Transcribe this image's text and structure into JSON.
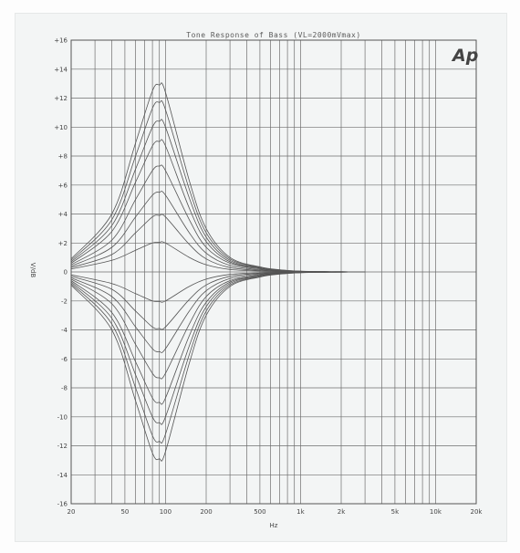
{
  "chart_data": {
    "type": "line",
    "title": "Tone Response of Bass (VL=2000mVmax)",
    "logo": "Ap",
    "xlabel": "Hz",
    "ylabel": "V/dB",
    "x_scale": "log",
    "xlim": [
      20,
      20000
    ],
    "ylim": [
      -16,
      16
    ],
    "x_ticks": [
      {
        "value": 20,
        "label": "20"
      },
      {
        "value": 50,
        "label": "50"
      },
      {
        "value": 100,
        "label": "100"
      },
      {
        "value": 200,
        "label": "200"
      },
      {
        "value": 500,
        "label": "500"
      },
      {
        "value": 1000,
        "label": "1k"
      },
      {
        "value": 2000,
        "label": "2k"
      },
      {
        "value": 5000,
        "label": "5k"
      },
      {
        "value": 10000,
        "label": "10k"
      },
      {
        "value": 20000,
        "label": "20k"
      }
    ],
    "y_ticks": [
      {
        "value": 16,
        "label": "+16"
      },
      {
        "value": 14,
        "label": "+14"
      },
      {
        "value": 12,
        "label": "+12"
      },
      {
        "value": 10,
        "label": "+10"
      },
      {
        "value": 8,
        "label": "+8"
      },
      {
        "value": 6,
        "label": "+6"
      },
      {
        "value": 4,
        "label": "+4"
      },
      {
        "value": 2,
        "label": "+2"
      },
      {
        "value": 0,
        "label": "0"
      },
      {
        "value": -2,
        "label": "-2"
      },
      {
        "value": -4,
        "label": "-4"
      },
      {
        "value": -6,
        "label": "-6"
      },
      {
        "value": -8,
        "label": "-8"
      },
      {
        "value": -10,
        "label": "-10"
      },
      {
        "value": -12,
        "label": "-12"
      },
      {
        "value": -14,
        "label": "-14"
      },
      {
        "value": -16,
        "label": "-16"
      }
    ],
    "grid": true,
    "line_color": "#555555",
    "grid_color": "#6e6e6e",
    "series": [
      {
        "x": [
          20,
          40,
          60,
          80,
          90,
          100,
          150,
          200,
          300,
          500,
          700,
          1000,
          1500,
          2000,
          3000
        ],
        "y": [
          0.9,
          4.0,
          8.9,
          12.5,
          12.9,
          12.4,
          6.3,
          3.0,
          1.0,
          0.35,
          0.15,
          0.05,
          0.02,
          0.01,
          0
        ]
      },
      {
        "x": [
          20,
          40,
          60,
          80,
          90,
          100,
          150,
          200,
          300,
          500,
          700,
          1000,
          1500,
          2000,
          3000
        ],
        "y": [
          0.8,
          3.6,
          8.0,
          11.3,
          11.7,
          11.2,
          5.7,
          2.7,
          0.9,
          0.32,
          0.14,
          0.05,
          0.02,
          0.01,
          0
        ]
      },
      {
        "x": [
          20,
          40,
          60,
          80,
          90,
          100,
          150,
          200,
          300,
          500,
          700,
          1000,
          1500,
          2000,
          3000
        ],
        "y": [
          0.7,
          3.2,
          7.1,
          10.0,
          10.4,
          10.0,
          5.1,
          2.4,
          0.8,
          0.28,
          0.12,
          0.04,
          0.02,
          0.01,
          0
        ]
      },
      {
        "x": [
          20,
          40,
          60,
          80,
          90,
          100,
          150,
          200,
          300,
          500,
          700,
          1000,
          1500,
          2000,
          3000
        ],
        "y": [
          0.6,
          2.8,
          6.2,
          8.7,
          9.0,
          8.7,
          4.4,
          2.1,
          0.7,
          0.25,
          0.1,
          0.04,
          0.01,
          0.01,
          0
        ]
      },
      {
        "x": [
          20,
          40,
          60,
          80,
          90,
          100,
          150,
          200,
          300,
          500,
          700,
          1000,
          1500,
          2000,
          3000
        ],
        "y": [
          0.5,
          2.2,
          5.0,
          7.0,
          7.3,
          7.0,
          3.6,
          1.7,
          0.6,
          0.2,
          0.08,
          0.03,
          0.01,
          0,
          0
        ]
      },
      {
        "x": [
          20,
          40,
          60,
          80,
          90,
          100,
          150,
          200,
          300,
          500,
          700,
          1000,
          1500,
          2000,
          3000
        ],
        "y": [
          0.4,
          1.7,
          3.8,
          5.3,
          5.5,
          5.3,
          2.7,
          1.3,
          0.45,
          0.15,
          0.06,
          0.02,
          0.01,
          0,
          0
        ]
      },
      {
        "x": [
          20,
          40,
          60,
          80,
          90,
          100,
          150,
          200,
          300,
          500,
          700,
          1000,
          1500,
          2000,
          3000
        ],
        "y": [
          0.3,
          1.2,
          2.7,
          3.8,
          3.9,
          3.8,
          1.9,
          0.9,
          0.3,
          0.1,
          0.04,
          0.01,
          0,
          0,
          0
        ]
      },
      {
        "x": [
          20,
          40,
          60,
          80,
          90,
          100,
          150,
          200,
          300,
          500,
          700,
          1000,
          1500,
          2000,
          3000
        ],
        "y": [
          0.2,
          0.8,
          1.5,
          2.0,
          2.05,
          2.0,
          1.0,
          0.5,
          0.17,
          0.06,
          0.02,
          0.01,
          0,
          0,
          0
        ]
      },
      {
        "x": [
          20,
          40,
          60,
          80,
          90,
          100,
          150,
          200,
          300,
          500,
          700,
          1000,
          1500,
          2000,
          3000
        ],
        "y": [
          -0.2,
          -0.8,
          -1.5,
          -2.0,
          -2.05,
          -2.0,
          -1.0,
          -0.5,
          -0.17,
          -0.06,
          -0.02,
          -0.01,
          0,
          0,
          0
        ]
      },
      {
        "x": [
          20,
          40,
          60,
          80,
          90,
          100,
          150,
          200,
          300,
          500,
          700,
          1000,
          1500,
          2000,
          3000
        ],
        "y": [
          -0.3,
          -1.2,
          -2.7,
          -3.8,
          -3.9,
          -3.8,
          -1.9,
          -0.9,
          -0.3,
          -0.1,
          -0.04,
          -0.01,
          0,
          0,
          0
        ]
      },
      {
        "x": [
          20,
          40,
          60,
          80,
          90,
          100,
          150,
          200,
          300,
          500,
          700,
          1000,
          1500,
          2000,
          3000
        ],
        "y": [
          -0.4,
          -1.7,
          -3.8,
          -5.3,
          -5.5,
          -5.3,
          -2.7,
          -1.3,
          -0.45,
          -0.15,
          -0.06,
          -0.02,
          -0.01,
          0,
          0
        ]
      },
      {
        "x": [
          20,
          40,
          60,
          80,
          90,
          100,
          150,
          200,
          300,
          500,
          700,
          1000,
          1500,
          2000,
          3000
        ],
        "y": [
          -0.5,
          -2.2,
          -5.0,
          -7.0,
          -7.3,
          -7.0,
          -3.6,
          -1.7,
          -0.6,
          -0.2,
          -0.08,
          -0.03,
          -0.01,
          0,
          0
        ]
      },
      {
        "x": [
          20,
          40,
          60,
          80,
          90,
          100,
          150,
          200,
          300,
          500,
          700,
          1000,
          1500,
          2000,
          3000
        ],
        "y": [
          -0.6,
          -2.8,
          -6.2,
          -8.7,
          -9.0,
          -8.7,
          -4.4,
          -2.1,
          -0.7,
          -0.25,
          -0.1,
          -0.04,
          -0.01,
          -0.01,
          0
        ]
      },
      {
        "x": [
          20,
          40,
          60,
          80,
          90,
          100,
          150,
          200,
          300,
          500,
          700,
          1000,
          1500,
          2000,
          3000
        ],
        "y": [
          -0.7,
          -3.2,
          -7.1,
          -10.0,
          -10.4,
          -10.0,
          -5.1,
          -2.4,
          -0.8,
          -0.28,
          -0.12,
          -0.04,
          -0.02,
          -0.01,
          0
        ]
      },
      {
        "x": [
          20,
          40,
          60,
          80,
          90,
          100,
          150,
          200,
          300,
          500,
          700,
          1000,
          1500,
          2000,
          3000
        ],
        "y": [
          -0.8,
          -3.6,
          -8.0,
          -11.3,
          -11.7,
          -11.2,
          -5.7,
          -2.7,
          -0.9,
          -0.32,
          -0.14,
          -0.05,
          -0.02,
          -0.01,
          0
        ]
      },
      {
        "x": [
          20,
          40,
          60,
          80,
          90,
          100,
          150,
          200,
          300,
          500,
          700,
          1000,
          1500,
          2000,
          3000
        ],
        "y": [
          -0.9,
          -4.0,
          -8.9,
          -12.5,
          -12.9,
          -12.4,
          -6.3,
          -3.0,
          -1.0,
          -0.35,
          -0.15,
          -0.05,
          -0.02,
          -0.01,
          0
        ]
      }
    ]
  }
}
